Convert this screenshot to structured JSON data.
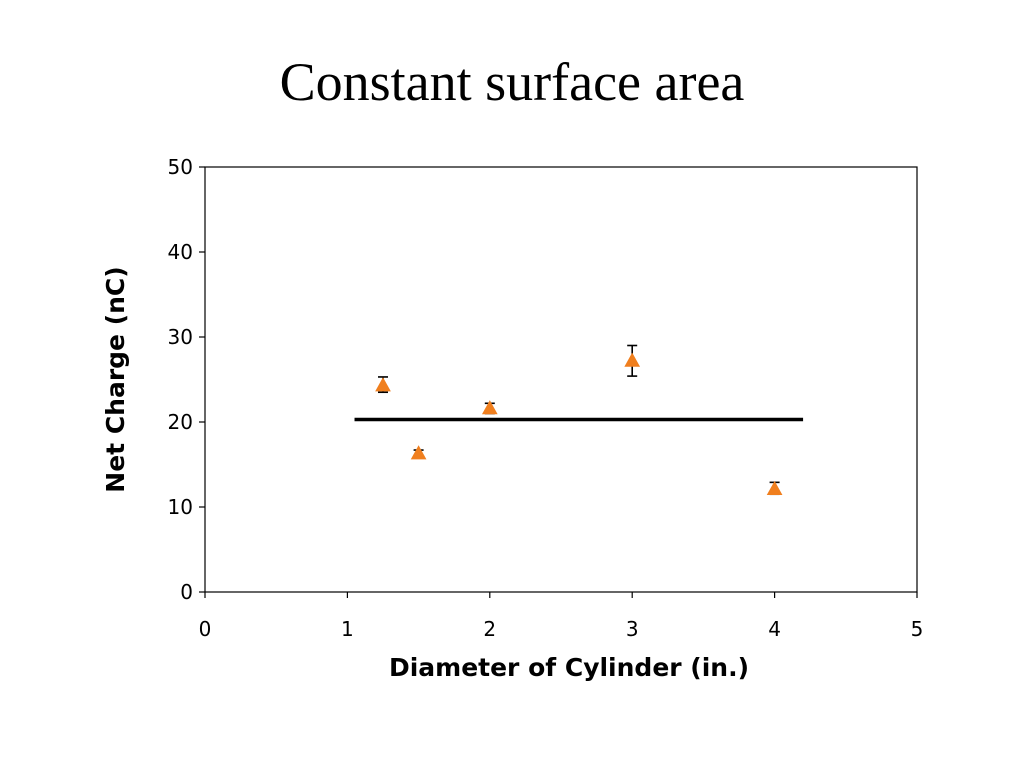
{
  "slide": {
    "title": "Constant surface area"
  },
  "chart_data": {
    "type": "scatter",
    "xlabel": "Diameter of Cylinder (in.)",
    "ylabel": "Net Charge (nC)",
    "xlim": [
      0,
      5
    ],
    "ylim": [
      0,
      50
    ],
    "xticks": [
      0,
      1,
      2,
      3,
      4,
      5
    ],
    "yticks": [
      0,
      10,
      20,
      30,
      40,
      50
    ],
    "grid": false,
    "series": [
      {
        "marker": "triangle",
        "color": "#f07f1e",
        "x": [
          1.25,
          1.5,
          2,
          3,
          4
        ],
        "y": [
          24.3,
          16.3,
          21.6,
          27.2,
          12.1
        ],
        "error_low": [
          0.8,
          0.4,
          0.6,
          1.8,
          0.6
        ],
        "error_high": [
          1.0,
          0.4,
          0.6,
          1.8,
          0.8
        ]
      }
    ],
    "reference_line": {
      "y": 20.3,
      "x_start": 1.05,
      "x_end": 4.2,
      "color": "#000000"
    }
  }
}
